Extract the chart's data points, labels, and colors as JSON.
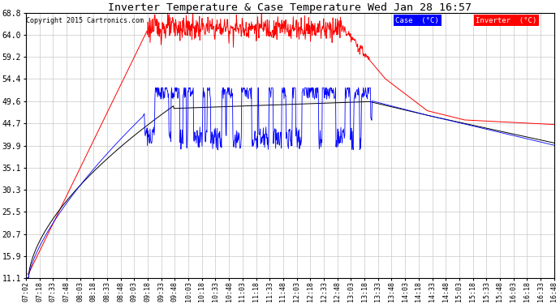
{
  "title": "Inverter Temperature & Case Temperature Wed Jan 28 16:57",
  "copyright": "Copyright 2015 Cartronics.com",
  "background_color": "#ffffff",
  "plot_bg_color": "#ffffff",
  "grid_color": "#c8c8c8",
  "ylim": [
    11.1,
    68.8
  ],
  "yticks": [
    11.1,
    15.9,
    20.7,
    25.5,
    30.3,
    35.1,
    39.9,
    44.7,
    49.6,
    54.4,
    59.2,
    64.0,
    68.8
  ],
  "xtick_labels": [
    "07:02",
    "07:18",
    "07:33",
    "07:48",
    "08:03",
    "08:18",
    "08:33",
    "08:48",
    "09:03",
    "09:18",
    "09:33",
    "09:48",
    "10:03",
    "10:18",
    "10:33",
    "10:48",
    "11:03",
    "11:18",
    "11:33",
    "11:48",
    "12:03",
    "12:18",
    "12:33",
    "12:48",
    "13:03",
    "13:18",
    "13:33",
    "13:48",
    "14:03",
    "14:18",
    "14:33",
    "14:48",
    "15:03",
    "15:18",
    "15:33",
    "15:48",
    "16:03",
    "16:18",
    "16:33",
    "16:48"
  ],
  "legend_case_label": "Case  (°C)",
  "legend_inverter_label": "Inverter  (°C)",
  "case_color": "#0000ff",
  "inverter_color": "#ff0000",
  "black_color": "#000000",
  "legend_case_bg": "#0000ff",
  "legend_inverter_bg": "#ff0000",
  "figwidth": 6.9,
  "figheight": 3.75,
  "dpi": 100
}
